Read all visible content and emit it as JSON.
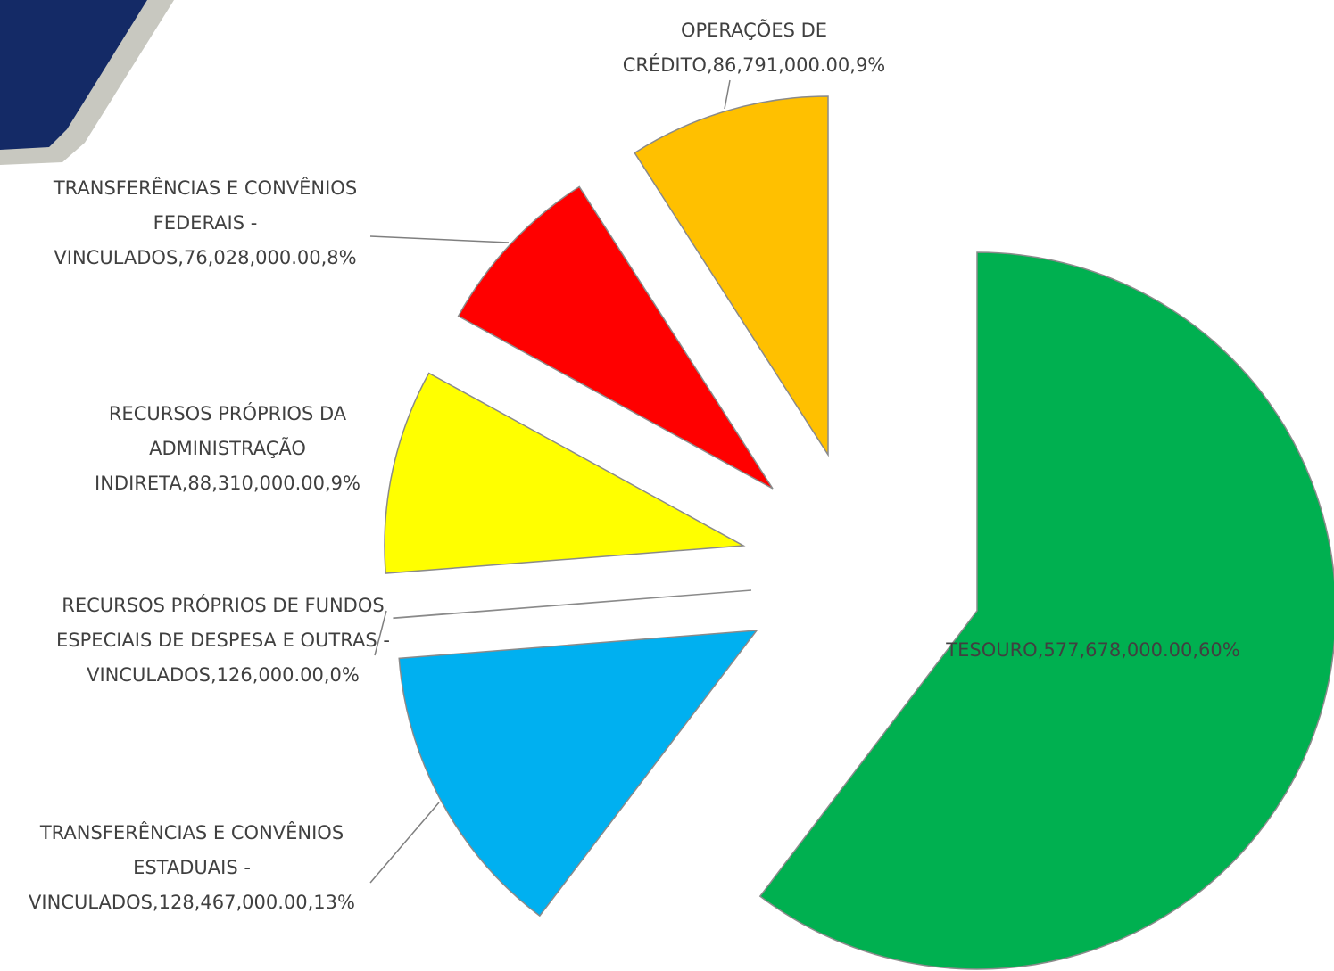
{
  "chart_data": {
    "type": "pie",
    "values": [
      577678000,
      128467000,
      126000,
      88310000,
      76028000,
      86791000
    ],
    "value_labels": [
      "TESOURO,577,678,000.00,60%",
      "TRANSFERÊNCIAS E CONVÊNIOS ESTADUAIS - VINCULADOS,128,467,000.00,13%",
      "RECURSOS PRÓPRIOS DE FUNDOS ESPECIAIS DE DESPESA E OUTRAS - VINCULADOS,126,000.00,0%",
      "RECURSOS PRÓPRIOS DA ADMINISTRAÇÃO INDIRETA,88,310,000.00,9%",
      "TRANSFERÊNCIAS E CONVÊNIOS FEDERAIS - VINCULADOS,76,028,000.00,8%",
      "OPERAÇÕES DE CRÉDITO,86,791,000.00,9%"
    ],
    "colors": [
      "#00b050",
      "#00b0f0",
      "#7030a0",
      "#ffff00",
      "#ff0000",
      "#ffc000"
    ]
  }
}
